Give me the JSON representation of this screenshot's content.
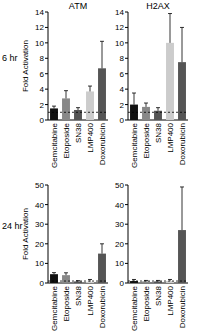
{
  "chart_data": [
    {
      "type": "bar",
      "title": "ATM",
      "annotation": "6 hr",
      "y_label": "Fold Activation",
      "categories": [
        "Gemcitabine",
        "Etoposide",
        "SN38",
        "LMP400",
        "Doxorubicin"
      ],
      "values": [
        1.5,
        2.8,
        1.3,
        3.7,
        6.7
      ],
      "errors": [
        0.3,
        1.0,
        0.3,
        0.7,
        3.5
      ],
      "colors": [
        "#111111",
        "#888888",
        "#555555",
        "#cccccc",
        "#555555"
      ],
      "ylim": [
        0,
        14
      ],
      "yticks": [
        0,
        2,
        4,
        6,
        8,
        10,
        12,
        14
      ],
      "baseline": 1
    },
    {
      "type": "bar",
      "title": "H2AX",
      "categories": [
        "Gemcitabine",
        "Etoposide",
        "SN38",
        "LMP400",
        "Doxorubicin"
      ],
      "values": [
        2.0,
        1.7,
        1.2,
        10.0,
        7.5
      ],
      "errors": [
        1.5,
        0.5,
        0.4,
        3.8,
        4.5
      ],
      "colors": [
        "#111111",
        "#888888",
        "#555555",
        "#cccccc",
        "#555555"
      ],
      "ylim": [
        0,
        14
      ],
      "yticks": [
        0,
        2,
        4,
        6,
        8,
        10,
        12,
        14
      ],
      "baseline": 1
    },
    {
      "type": "bar",
      "annotation": "24 hr",
      "y_label": "Fold Activation",
      "categories": [
        "Gemcitabine",
        "Etoposide",
        "SN38",
        "LMP400",
        "Doxorubicin"
      ],
      "values": [
        4.5,
        4.0,
        0.8,
        0.6,
        15.0
      ],
      "errors": [
        0.8,
        1.2,
        0.4,
        1.2,
        5.0
      ],
      "colors": [
        "#111111",
        "#888888",
        "#555555",
        "#cccccc",
        "#555555"
      ],
      "ylim": [
        0,
        50
      ],
      "yticks": [
        0,
        10,
        20,
        30,
        40,
        50
      ],
      "baseline": 1
    },
    {
      "type": "bar",
      "categories": [
        "Gemcitabine",
        "Etoposide",
        "SN38",
        "LMP400",
        "Doxorubicin"
      ],
      "values": [
        1.0,
        0.8,
        0.8,
        1.0,
        27.0
      ],
      "errors": [
        0.8,
        0.5,
        0.5,
        0.8,
        22.0
      ],
      "colors": [
        "#111111",
        "#888888",
        "#555555",
        "#cccccc",
        "#555555"
      ],
      "ylim": [
        0,
        50
      ],
      "yticks": [
        0,
        10,
        20,
        30,
        40,
        50
      ],
      "baseline": 1
    }
  ]
}
